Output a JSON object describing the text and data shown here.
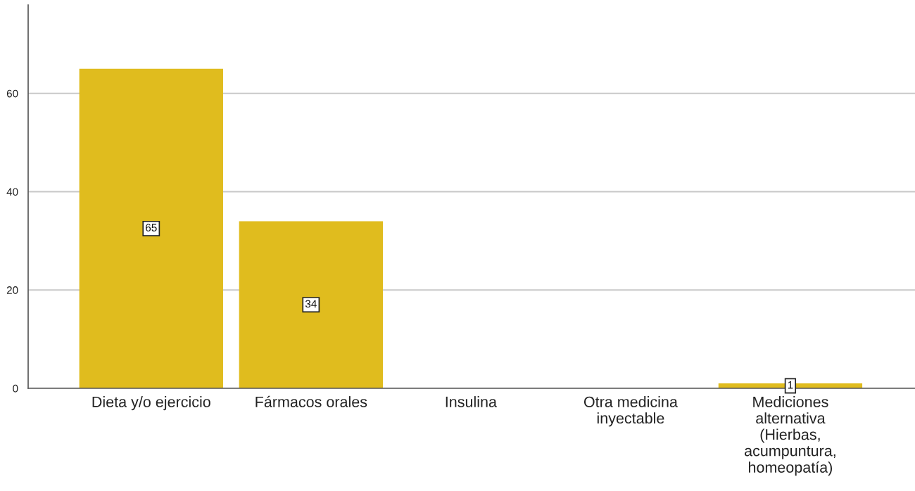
{
  "chart_data": {
    "type": "bar",
    "categories": [
      "Dieta y/o ejercicio",
      "Fármacos orales",
      "Insulina",
      "Otra medicina\ninyectable",
      "Mediciones\nalternativa\n(Hierbas,\nacumpuntura,\nhomeopatía)"
    ],
    "values": [
      65,
      34,
      0,
      0,
      1
    ],
    "color": "#e0bc1e",
    "value_labels": [
      "65",
      "34",
      null,
      null,
      "1"
    ],
    "ylim": [
      0,
      78
    ],
    "yticks": [
      0,
      20,
      40,
      60
    ],
    "grid": "y",
    "legend": false
  }
}
